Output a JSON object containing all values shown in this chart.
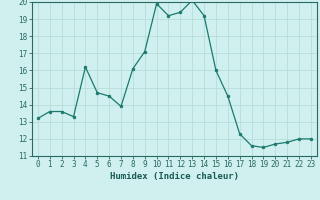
{
  "x": [
    0,
    1,
    2,
    3,
    4,
    5,
    6,
    7,
    8,
    9,
    10,
    11,
    12,
    13,
    14,
    15,
    16,
    17,
    18,
    19,
    20,
    21,
    22,
    23
  ],
  "y": [
    13.2,
    13.6,
    13.6,
    13.3,
    16.2,
    14.7,
    14.5,
    13.9,
    16.1,
    17.1,
    19.9,
    19.2,
    19.4,
    20.1,
    19.2,
    16.0,
    14.5,
    12.3,
    11.6,
    11.5,
    11.7,
    11.8,
    12.0,
    12.0
  ],
  "xlabel": "Humidex (Indice chaleur)",
  "ylim": [
    11,
    20
  ],
  "xlim": [
    -0.5,
    23.5
  ],
  "yticks": [
    11,
    12,
    13,
    14,
    15,
    16,
    17,
    18,
    19,
    20
  ],
  "xticks": [
    0,
    1,
    2,
    3,
    4,
    5,
    6,
    7,
    8,
    9,
    10,
    11,
    12,
    13,
    14,
    15,
    16,
    17,
    18,
    19,
    20,
    21,
    22,
    23
  ],
  "line_color": "#1a7a6e",
  "marker_color": "#1a7a6e",
  "bg_color": "#cff0ee",
  "grid_color": "#b8ddd9",
  "axis_color": "#2a6a60",
  "text_color": "#1a5a50",
  "tick_fontsize": 5.5,
  "xlabel_fontsize": 6.5
}
